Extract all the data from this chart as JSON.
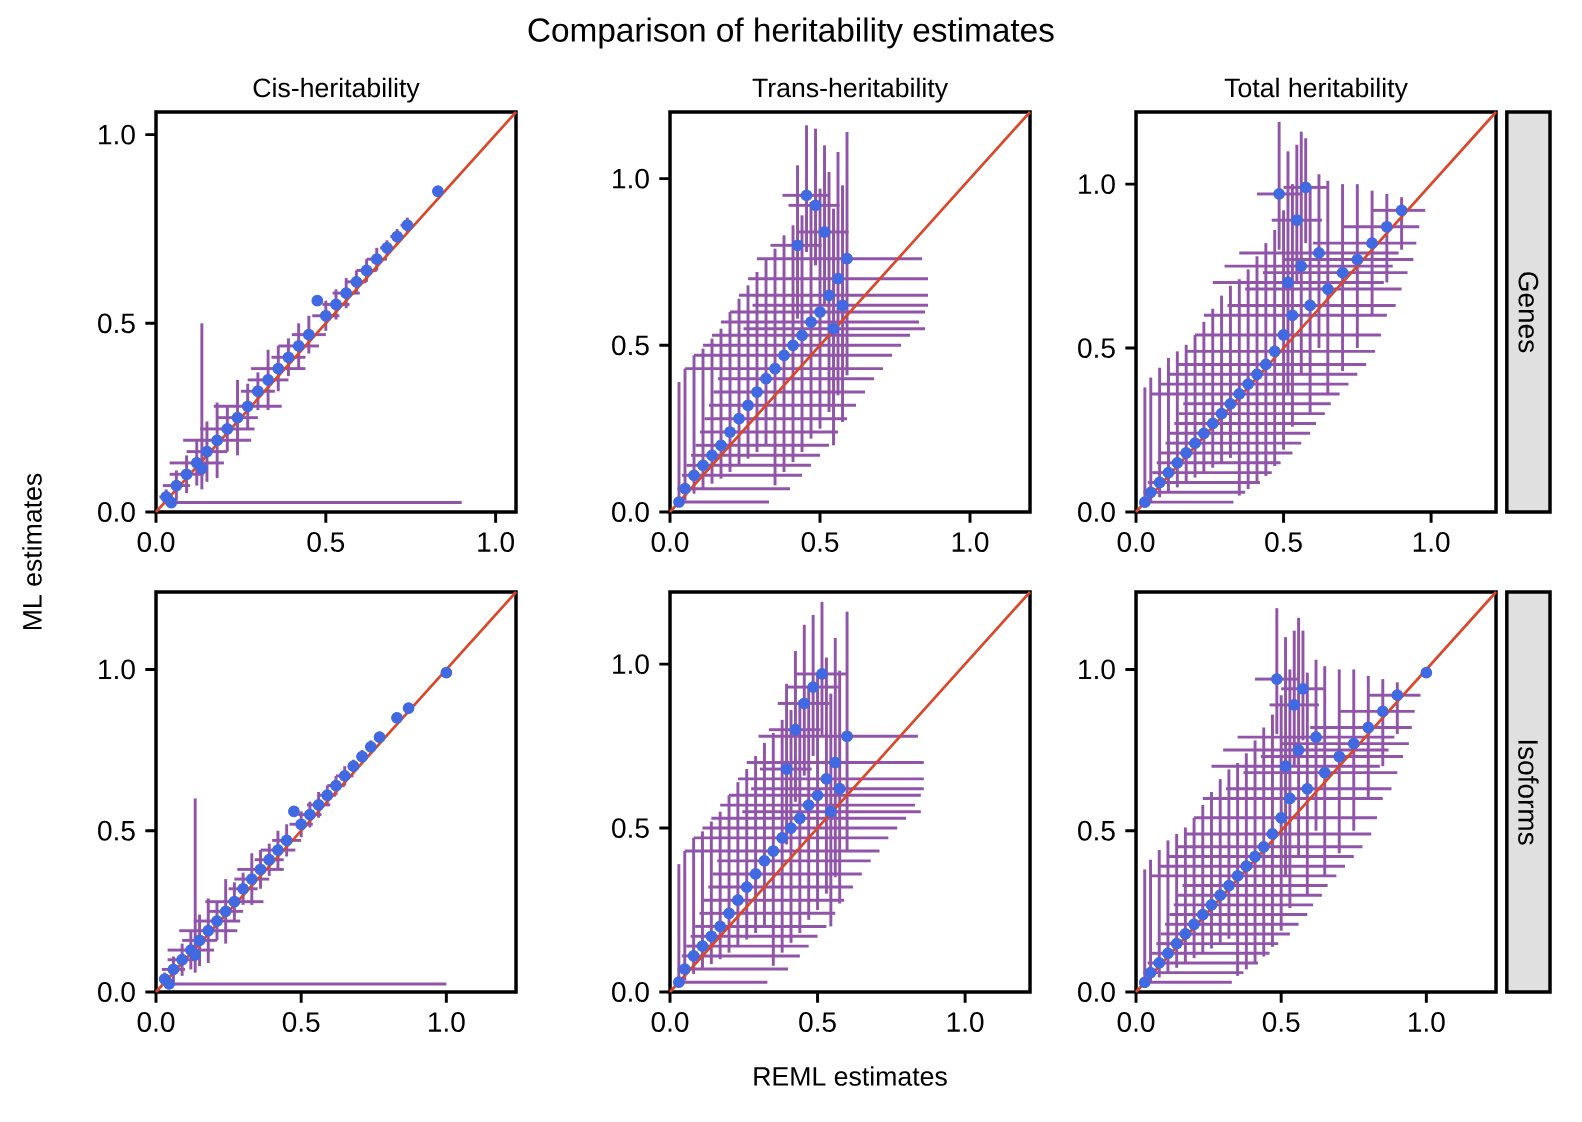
{
  "chart_data": [
    {
      "type": "scatter",
      "title": "Cis-heritability",
      "annotations": [
        "Comparison of heritability estimates"
      ],
      "ylabel": "ML estimates",
      "xlim": [
        0,
        1.06
      ],
      "ylim": [
        0,
        1.06
      ],
      "xticks": [
        {
          "value": 0,
          "label": "0.0"
        },
        {
          "value": 0.5,
          "label": "0.5"
        },
        {
          "value": 1,
          "label": "1.0"
        }
      ],
      "yticks": [
        {
          "value": 0,
          "label": "0.0"
        },
        {
          "value": 0.5,
          "label": "0.5"
        },
        {
          "value": 1,
          "label": "1.0"
        }
      ],
      "series": [
        {
          "marker": "circle",
          "color": "#4169e1",
          "x": [
            0.03,
            0.06,
            0.09,
            0.12,
            0.15,
            0.18,
            0.21,
            0.24,
            0.27,
            0.3,
            0.33,
            0.36,
            0.39,
            0.42,
            0.45,
            0.5,
            0.53,
            0.56,
            0.59,
            0.62,
            0.65,
            0.68,
            0.71,
            0.74,
            0.83,
            0.475,
            0.045,
            0.135
          ],
          "values": [
            0.04,
            0.07,
            0.1,
            0.13,
            0.16,
            0.19,
            0.22,
            0.25,
            0.28,
            0.32,
            0.35,
            0.38,
            0.41,
            0.44,
            0.47,
            0.52,
            0.55,
            0.58,
            0.61,
            0.64,
            0.67,
            0.7,
            0.73,
            0.76,
            0.85,
            0.56,
            0.025,
            0.115
          ],
          "errors": [
            0.02,
            0.04,
            0.05,
            0.06,
            0.08,
            0.1,
            0.06,
            0.1,
            0.06,
            0.05,
            0.08,
            0.06,
            0.05,
            0.06,
            0.05,
            0.04,
            0.04,
            0.04,
            0.03,
            0.03,
            0.03,
            0.02,
            0.02,
            0.02,
            null,
            null,
            null,
            [
              0.06,
              0.5
            ]
          ],
          "xerrors": [
            0.02,
            0.04,
            0.05,
            0.08,
            0.06,
            0.1,
            0.08,
            0.06,
            0.1,
            0.05,
            0.06,
            0.08,
            0.05,
            0.06,
            0.05,
            0.04,
            0.04,
            0.04,
            0.03,
            0.03,
            0.03,
            0.02,
            0.02,
            0.02,
            null,
            null,
            [
              0.02,
              0.9
            ],
            null
          ]
        },
        {
          "type": "line",
          "marker": "none",
          "color": "#d9472b",
          "x": [
            0,
            1.06
          ],
          "values": [
            0,
            1.06
          ]
        }
      ]
    },
    {
      "type": "scatter",
      "title": "Trans-heritability",
      "xlim": [
        0,
        1.2
      ],
      "ylim": [
        0,
        1.2
      ],
      "xticks": [
        {
          "value": 0,
          "label": "0.0"
        },
        {
          "value": 0.5,
          "label": "0.5"
        },
        {
          "value": 1,
          "label": "1.0"
        }
      ],
      "yticks": [
        {
          "value": 0,
          "label": "0.0"
        },
        {
          "value": 0.5,
          "label": "0.5"
        },
        {
          "value": 1,
          "label": "1.0"
        }
      ],
      "series": [
        {
          "marker": "circle",
          "color": "#4169e1",
          "x": [
            0.03,
            0.05,
            0.08,
            0.11,
            0.14,
            0.17,
            0.2,
            0.23,
            0.26,
            0.29,
            0.32,
            0.35,
            0.38,
            0.41,
            0.44,
            0.47,
            0.5,
            0.53,
            0.56,
            0.59,
            0.545,
            0.575,
            0.455,
            0.485,
            0.515,
            0.425
          ],
          "values": [
            0.03,
            0.07,
            0.11,
            0.14,
            0.17,
            0.2,
            0.24,
            0.28,
            0.32,
            0.36,
            0.4,
            0.43,
            0.47,
            0.5,
            0.53,
            0.57,
            0.6,
            0.65,
            0.7,
            0.76,
            0.55,
            0.62,
            0.95,
            0.92,
            0.84,
            0.8
          ],
          "errors": [
            [
              0.015,
              0.39
            ],
            [
              0.035,
              0.43
            ],
            [
              0.055,
              0.47
            ],
            [
              0.07,
              0.49
            ],
            [
              0.085,
              0.52
            ],
            [
              0.1,
              0.55
            ],
            [
              0.12,
              0.6
            ],
            [
              0.14,
              0.64
            ],
            [
              0.16,
              0.68
            ],
            [
              0.18,
              0.72
            ],
            [
              0.2,
              0.76
            ],
            [
              0.08,
              0.79
            ],
            [
              0.12,
              0.83
            ],
            [
              0.15,
              0.86
            ],
            [
              0.18,
              0.89
            ],
            [
              0.22,
              0.93
            ],
            [
              0.25,
              0.97
            ],
            [
              0.3,
              1.02
            ],
            [
              0.35,
              1.08
            ],
            [
              0.41,
              1.14
            ],
            [
              0.2,
              0.91
            ],
            [
              0.27,
              0.98
            ],
            [
              0.78,
              1.16
            ],
            [
              0.74,
              1.15
            ],
            [
              0.62,
              1.1
            ],
            [
              0.58,
              1.04
            ]
          ],
          "xerrors": [
            [
              0.015,
              0.33
            ],
            [
              0.025,
              0.4
            ],
            [
              0.04,
              0.44
            ],
            [
              0.055,
              0.47
            ],
            [
              0.07,
              0.5
            ],
            [
              0.085,
              0.53
            ],
            [
              0.1,
              0.56
            ],
            [
              0.115,
              0.59
            ],
            [
              0.13,
              0.62
            ],
            [
              0.145,
              0.65
            ],
            [
              0.16,
              0.68
            ],
            [
              0.05,
              0.71
            ],
            [
              0.08,
              0.74
            ],
            [
              0.11,
              0.77
            ],
            [
              0.14,
              0.8
            ],
            [
              0.17,
              0.83
            ],
            [
              0.2,
              0.85
            ],
            [
              0.23,
              0.86
            ],
            [
              0.26,
              0.86
            ],
            [
              0.29,
              0.84
            ],
            [
              0.245,
              0.85
            ],
            [
              0.275,
              0.86
            ],
            [
              0.375,
              0.53
            ],
            [
              0.395,
              0.565
            ],
            [
              0.425,
              0.595
            ],
            [
              0.335,
              0.505
            ]
          ]
        },
        {
          "type": "line",
          "marker": "none",
          "color": "#d9472b",
          "x": [
            0,
            1.2
          ],
          "values": [
            0,
            1.2
          ]
        }
      ]
    },
    {
      "type": "scatter",
      "title": "Total heritability",
      "annotations": [
        "Genes"
      ],
      "xlim": [
        0,
        1.22
      ],
      "ylim": [
        0,
        1.22
      ],
      "xticks": [
        {
          "value": 0,
          "label": "0.0"
        },
        {
          "value": 0.5,
          "label": "0.5"
        },
        {
          "value": 1,
          "label": "1.0"
        }
      ],
      "yticks": [
        {
          "value": 0,
          "label": "0.0"
        },
        {
          "value": 0.5,
          "label": "0.5"
        },
        {
          "value": 1,
          "label": "1.0"
        }
      ],
      "series": [
        {
          "marker": "circle",
          "color": "#4169e1",
          "x": [
            0.03,
            0.05,
            0.08,
            0.11,
            0.14,
            0.17,
            0.2,
            0.23,
            0.26,
            0.29,
            0.32,
            0.35,
            0.38,
            0.41,
            0.44,
            0.47,
            0.5,
            0.53,
            0.59,
            0.65,
            0.7,
            0.75,
            0.8,
            0.85,
            0.9,
            0.56,
            0.62,
            0.515,
            0.485,
            0.575,
            0.545
          ],
          "values": [
            0.03,
            0.06,
            0.09,
            0.12,
            0.15,
            0.18,
            0.21,
            0.24,
            0.27,
            0.3,
            0.33,
            0.36,
            0.39,
            0.42,
            0.45,
            0.49,
            0.54,
            0.6,
            0.63,
            0.68,
            0.73,
            0.77,
            0.82,
            0.87,
            0.92,
            0.75,
            0.79,
            0.7,
            0.97,
            0.99,
            0.89
          ],
          "errors": [
            [
              0.015,
              0.38
            ],
            [
              0.03,
              0.41
            ],
            [
              0.045,
              0.44
            ],
            [
              0.06,
              0.47
            ],
            [
              0.075,
              0.49
            ],
            [
              0.09,
              0.51
            ],
            [
              0.105,
              0.54
            ],
            [
              0.12,
              0.58
            ],
            [
              0.135,
              0.62
            ],
            [
              0.15,
              0.66
            ],
            [
              0.165,
              0.69
            ],
            [
              0.05,
              0.71
            ],
            [
              0.07,
              0.74
            ],
            [
              0.09,
              0.78
            ],
            [
              0.11,
              0.82
            ],
            [
              0.14,
              0.86
            ],
            [
              0.19,
              0.92
            ],
            [
              0.26,
              1.0
            ],
            [
              0.3,
              0.99
            ],
            [
              0.36,
              1.01
            ],
            [
              0.43,
              1.0
            ],
            [
              0.5,
              1.0
            ],
            [
              0.6,
              0.98
            ],
            [
              0.7,
              0.97
            ],
            [
              0.8,
              0.96
            ],
            [
              0.42,
              1.16
            ],
            [
              0.5,
              1.03
            ],
            [
              0.36,
              1.1
            ],
            [
              0.8,
              1.19
            ],
            [
              0.82,
              1.14
            ],
            [
              0.7,
              1.12
            ]
          ],
          "xerrors": [
            [
              0.015,
              0.33
            ],
            [
              0.025,
              0.37
            ],
            [
              0.04,
              0.42
            ],
            [
              0.055,
              0.46
            ],
            [
              0.07,
              0.49
            ],
            [
              0.085,
              0.53
            ],
            [
              0.1,
              0.56
            ],
            [
              0.115,
              0.59
            ],
            [
              0.13,
              0.61
            ],
            [
              0.145,
              0.64
            ],
            [
              0.16,
              0.66
            ],
            [
              0.05,
              0.69
            ],
            [
              0.08,
              0.72
            ],
            [
              0.11,
              0.75
            ],
            [
              0.14,
              0.78
            ],
            [
              0.17,
              0.81
            ],
            [
              0.2,
              0.83
            ],
            [
              0.23,
              0.85
            ],
            [
              0.31,
              0.88
            ],
            [
              0.37,
              0.9
            ],
            [
              0.43,
              0.92
            ],
            [
              0.5,
              0.94
            ],
            [
              0.6,
              0.95
            ],
            [
              0.7,
              0.96
            ],
            [
              0.8,
              0.98
            ],
            [
              0.3,
              0.87
            ],
            [
              0.35,
              0.89
            ],
            [
              0.26,
              0.84
            ],
            [
              0.41,
              0.56
            ],
            [
              0.5,
              0.65
            ],
            [
              0.46,
              0.63
            ]
          ]
        },
        {
          "type": "line",
          "marker": "none",
          "color": "#d9472b",
          "x": [
            0,
            1.22
          ],
          "values": [
            0,
            1.22
          ]
        }
      ]
    },
    {
      "type": "scatter",
      "xlim": [
        0,
        1.24
      ],
      "ylim": [
        0,
        1.24
      ],
      "xticks": [
        {
          "value": 0,
          "label": "0.0"
        },
        {
          "value": 0.5,
          "label": "0.5"
        },
        {
          "value": 1,
          "label": "1.0"
        }
      ],
      "yticks": [
        {
          "value": 0,
          "label": "0.0"
        },
        {
          "value": 0.5,
          "label": "0.5"
        },
        {
          "value": 1,
          "label": "1.0"
        }
      ],
      "series": [
        {
          "marker": "circle",
          "color": "#4169e1",
          "x": [
            0.03,
            0.06,
            0.09,
            0.12,
            0.15,
            0.18,
            0.21,
            0.24,
            0.27,
            0.3,
            0.33,
            0.36,
            0.39,
            0.42,
            0.45,
            0.5,
            0.53,
            0.56,
            0.59,
            0.62,
            0.65,
            0.68,
            0.71,
            0.74,
            0.77,
            0.83,
            0.87,
            1.0,
            0.475,
            0.045,
            0.135
          ],
          "values": [
            0.04,
            0.07,
            0.1,
            0.13,
            0.16,
            0.19,
            0.22,
            0.25,
            0.28,
            0.32,
            0.35,
            0.38,
            0.41,
            0.44,
            0.47,
            0.52,
            0.55,
            0.58,
            0.61,
            0.64,
            0.67,
            0.7,
            0.73,
            0.76,
            0.79,
            0.85,
            0.88,
            0.99,
            0.56,
            0.025,
            0.115
          ],
          "errors": [
            0.02,
            0.04,
            0.05,
            0.06,
            0.08,
            0.1,
            0.06,
            0.1,
            0.06,
            0.05,
            0.08,
            0.06,
            0.05,
            0.06,
            0.05,
            0.04,
            0.04,
            0.04,
            0.03,
            0.03,
            0.03,
            0.02,
            0.02,
            0.02,
            null,
            null,
            null,
            null,
            null,
            null,
            [
              0.06,
              0.6
            ]
          ],
          "xerrors": [
            0.02,
            0.04,
            0.05,
            0.08,
            0.06,
            0.1,
            0.08,
            0.06,
            0.1,
            0.05,
            0.06,
            0.08,
            0.05,
            0.06,
            0.05,
            0.04,
            0.04,
            0.04,
            0.03,
            0.03,
            0.03,
            0.02,
            0.02,
            0.02,
            null,
            null,
            null,
            null,
            null,
            [
              0.02,
              1.0
            ],
            null
          ]
        },
        {
          "type": "line",
          "marker": "none",
          "color": "#d9472b",
          "x": [
            0,
            1.24
          ],
          "values": [
            0,
            1.24
          ]
        }
      ]
    },
    {
      "type": "scatter",
      "xlabel": "REML estimates",
      "xlim": [
        0,
        1.22
      ],
      "ylim": [
        0,
        1.22
      ],
      "xticks": [
        {
          "value": 0,
          "label": "0.0"
        },
        {
          "value": 0.5,
          "label": "0.5"
        },
        {
          "value": 1,
          "label": "1.0"
        }
      ],
      "yticks": [
        {
          "value": 0,
          "label": "0.0"
        },
        {
          "value": 0.5,
          "label": "0.5"
        },
        {
          "value": 1,
          "label": "1.0"
        }
      ],
      "series": [
        {
          "marker": "circle",
          "color": "#4169e1",
          "x": [
            0.03,
            0.05,
            0.08,
            0.11,
            0.14,
            0.17,
            0.2,
            0.23,
            0.26,
            0.29,
            0.32,
            0.35,
            0.38,
            0.41,
            0.44,
            0.47,
            0.5,
            0.53,
            0.56,
            0.6,
            0.545,
            0.575,
            0.515,
            0.485,
            0.455,
            0.425,
            0.395
          ],
          "values": [
            0.03,
            0.07,
            0.11,
            0.14,
            0.17,
            0.2,
            0.24,
            0.28,
            0.32,
            0.36,
            0.4,
            0.43,
            0.47,
            0.5,
            0.53,
            0.57,
            0.6,
            0.65,
            0.7,
            0.78,
            0.55,
            0.62,
            0.97,
            0.93,
            0.88,
            0.8,
            0.68
          ],
          "errors": [
            [
              0.015,
              0.39
            ],
            [
              0.035,
              0.43
            ],
            [
              0.055,
              0.47
            ],
            [
              0.07,
              0.49
            ],
            [
              0.085,
              0.52
            ],
            [
              0.1,
              0.55
            ],
            [
              0.12,
              0.6
            ],
            [
              0.14,
              0.64
            ],
            [
              0.16,
              0.68
            ],
            [
              0.18,
              0.72
            ],
            [
              0.2,
              0.76
            ],
            [
              0.08,
              0.79
            ],
            [
              0.12,
              0.83
            ],
            [
              0.15,
              0.86
            ],
            [
              0.18,
              0.89
            ],
            [
              0.22,
              0.93
            ],
            [
              0.25,
              0.97
            ],
            [
              0.3,
              1.02
            ],
            [
              0.35,
              1.08
            ],
            [
              0.43,
              1.16
            ],
            [
              0.2,
              0.91
            ],
            [
              0.27,
              0.98
            ],
            [
              0.78,
              1.19
            ],
            [
              0.72,
              1.15
            ],
            [
              0.66,
              1.12
            ],
            [
              0.58,
              1.04
            ],
            [
              0.45,
              0.94
            ]
          ],
          "xerrors": [
            [
              0.015,
              0.33
            ],
            [
              0.025,
              0.4
            ],
            [
              0.04,
              0.44
            ],
            [
              0.055,
              0.47
            ],
            [
              0.07,
              0.5
            ],
            [
              0.085,
              0.53
            ],
            [
              0.1,
              0.56
            ],
            [
              0.115,
              0.59
            ],
            [
              0.13,
              0.62
            ],
            [
              0.145,
              0.65
            ],
            [
              0.16,
              0.68
            ],
            [
              0.05,
              0.71
            ],
            [
              0.08,
              0.74
            ],
            [
              0.11,
              0.77
            ],
            [
              0.14,
              0.8
            ],
            [
              0.17,
              0.83
            ],
            [
              0.2,
              0.85
            ],
            [
              0.23,
              0.86
            ],
            [
              0.26,
              0.86
            ],
            [
              0.3,
              0.84
            ],
            [
              0.245,
              0.85
            ],
            [
              0.275,
              0.86
            ],
            [
              0.425,
              0.6
            ],
            [
              0.395,
              0.57
            ],
            [
              0.365,
              0.54
            ],
            [
              0.335,
              0.51
            ],
            [
              0.305,
              0.48
            ]
          ]
        },
        {
          "type": "line",
          "marker": "none",
          "color": "#d9472b",
          "x": [
            0,
            1.22
          ],
          "values": [
            0,
            1.22
          ]
        }
      ]
    },
    {
      "type": "scatter",
      "annotations": [
        "Isoforms"
      ],
      "xlim": [
        0,
        1.24
      ],
      "ylim": [
        0,
        1.24
      ],
      "xticks": [
        {
          "value": 0,
          "label": "0.0"
        },
        {
          "value": 0.5,
          "label": "0.5"
        },
        {
          "value": 1,
          "label": "1.0"
        }
      ],
      "yticks": [
        {
          "value": 0,
          "label": "0.0"
        },
        {
          "value": 0.5,
          "label": "0.5"
        },
        {
          "value": 1,
          "label": "1.0"
        }
      ],
      "series": [
        {
          "marker": "circle",
          "color": "#4169e1",
          "x": [
            0.03,
            0.05,
            0.08,
            0.11,
            0.14,
            0.17,
            0.2,
            0.23,
            0.26,
            0.29,
            0.32,
            0.35,
            0.38,
            0.41,
            0.44,
            0.47,
            0.5,
            0.53,
            0.59,
            0.65,
            0.7,
            0.75,
            0.8,
            0.85,
            0.9,
            0.56,
            0.62,
            0.515,
            0.485,
            0.575,
            0.545,
            1.0
          ],
          "values": [
            0.03,
            0.06,
            0.09,
            0.12,
            0.15,
            0.18,
            0.21,
            0.24,
            0.27,
            0.3,
            0.33,
            0.36,
            0.39,
            0.42,
            0.45,
            0.49,
            0.54,
            0.6,
            0.63,
            0.68,
            0.73,
            0.77,
            0.82,
            0.87,
            0.92,
            0.75,
            0.79,
            0.7,
            0.97,
            0.94,
            0.89,
            0.99
          ],
          "errors": [
            [
              0.015,
              0.38
            ],
            [
              0.03,
              0.41
            ],
            [
              0.045,
              0.44
            ],
            [
              0.06,
              0.47
            ],
            [
              0.075,
              0.49
            ],
            [
              0.09,
              0.51
            ],
            [
              0.105,
              0.54
            ],
            [
              0.12,
              0.58
            ],
            [
              0.135,
              0.62
            ],
            [
              0.15,
              0.66
            ],
            [
              0.165,
              0.69
            ],
            [
              0.05,
              0.71
            ],
            [
              0.07,
              0.74
            ],
            [
              0.09,
              0.78
            ],
            [
              0.11,
              0.82
            ],
            [
              0.14,
              0.86
            ],
            [
              0.19,
              0.92
            ],
            [
              0.26,
              1.0
            ],
            [
              0.3,
              0.99
            ],
            [
              0.36,
              1.01
            ],
            [
              0.43,
              1.0
            ],
            [
              0.5,
              1.0
            ],
            [
              0.6,
              0.98
            ],
            [
              0.7,
              0.97
            ],
            [
              0.8,
              0.96
            ],
            [
              0.42,
              1.16
            ],
            [
              0.5,
              1.03
            ],
            [
              0.36,
              1.1
            ],
            [
              0.8,
              1.19
            ],
            [
              0.78,
              1.12
            ],
            [
              0.7,
              1.12
            ],
            null
          ],
          "xerrors": [
            [
              0.015,
              0.33
            ],
            [
              0.025,
              0.37
            ],
            [
              0.04,
              0.42
            ],
            [
              0.055,
              0.46
            ],
            [
              0.07,
              0.49
            ],
            [
              0.085,
              0.53
            ],
            [
              0.1,
              0.56
            ],
            [
              0.115,
              0.59
            ],
            [
              0.13,
              0.61
            ],
            [
              0.145,
              0.64
            ],
            [
              0.16,
              0.66
            ],
            [
              0.05,
              0.69
            ],
            [
              0.08,
              0.72
            ],
            [
              0.11,
              0.75
            ],
            [
              0.14,
              0.78
            ],
            [
              0.17,
              0.81
            ],
            [
              0.2,
              0.83
            ],
            [
              0.23,
              0.85
            ],
            [
              0.31,
              0.88
            ],
            [
              0.37,
              0.9
            ],
            [
              0.43,
              0.92
            ],
            [
              0.5,
              0.94
            ],
            [
              0.6,
              0.95
            ],
            [
              0.7,
              0.96
            ],
            [
              0.8,
              0.98
            ],
            [
              0.3,
              0.87
            ],
            [
              0.35,
              0.89
            ],
            [
              0.26,
              0.84
            ],
            [
              0.41,
              0.56
            ],
            [
              0.5,
              0.65
            ],
            [
              0.46,
              0.63
            ],
            null
          ]
        },
        {
          "type": "line",
          "marker": "none",
          "color": "#d9472b",
          "x": [
            0,
            1.24
          ],
          "values": [
            0,
            1.24
          ]
        }
      ]
    }
  ]
}
